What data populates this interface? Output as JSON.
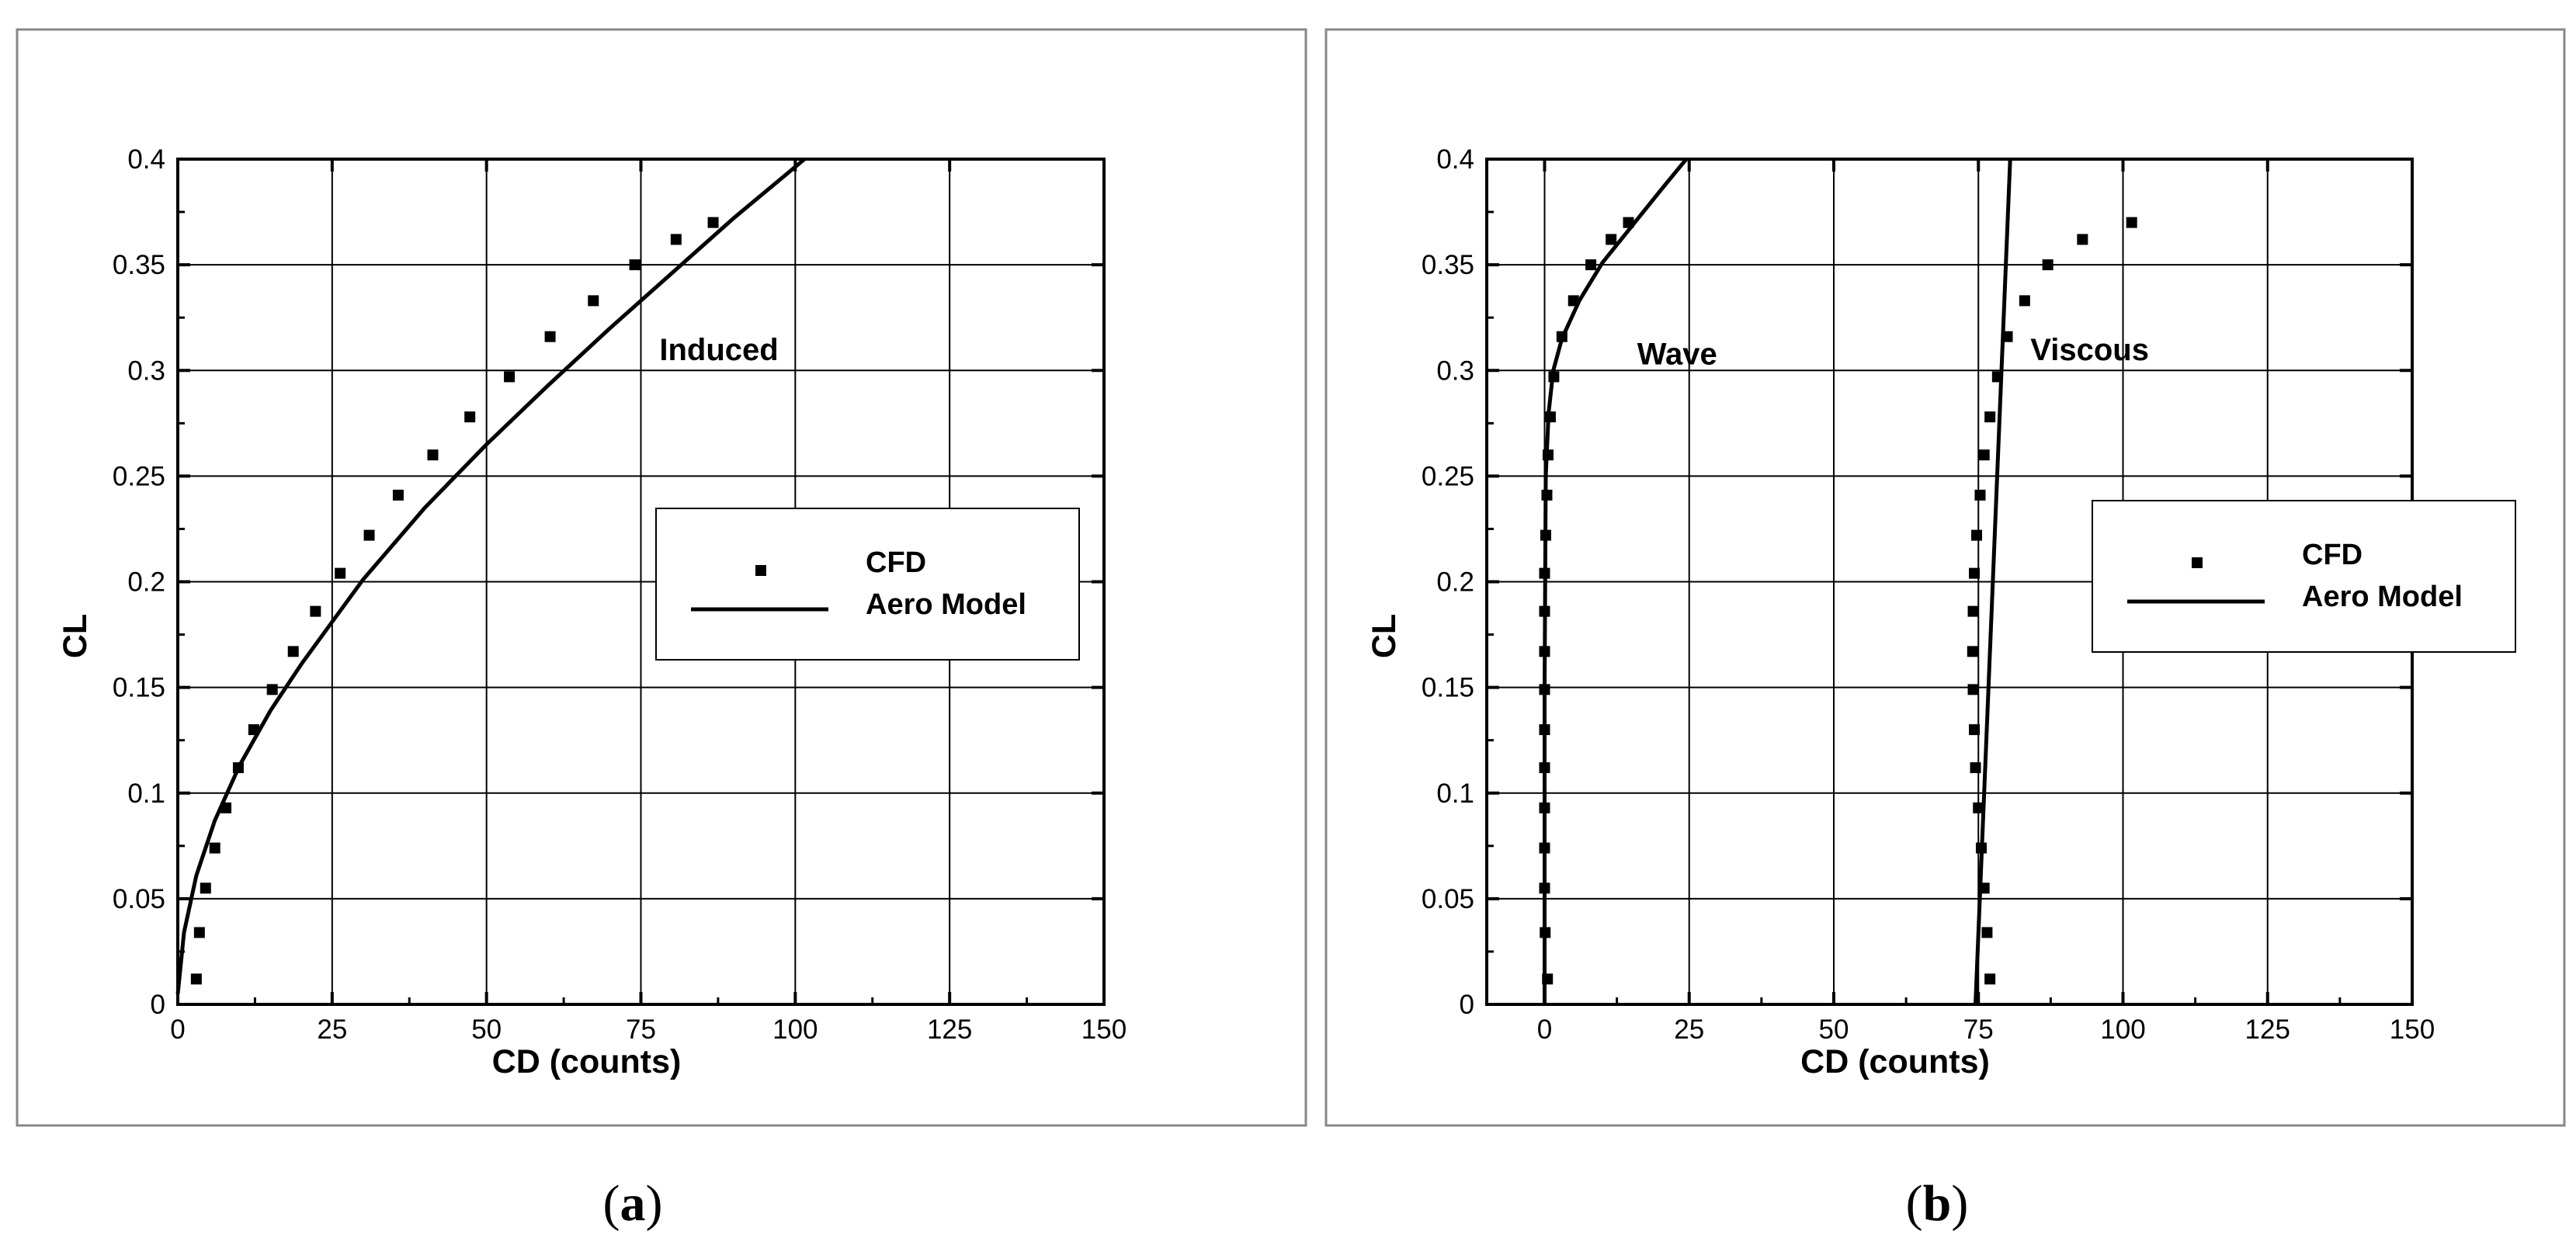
{
  "chart_data": [
    {
      "type": "scatter",
      "panel_label": "a",
      "xlabel": "CD (counts)",
      "ylabel": "CL",
      "xlim": [
        0,
        150
      ],
      "ylim": [
        0,
        0.4
      ],
      "xticks": [
        "0",
        "25",
        "50",
        "75",
        "100",
        "125",
        "150"
      ],
      "yticks": [
        "0",
        "0.05",
        "0.1",
        "0.15",
        "0.2",
        "0.25",
        "0.3",
        "0.35",
        "0.4"
      ],
      "grid": true,
      "legend": {
        "placement": "right",
        "entries": [
          "CFD",
          "Aero Model"
        ]
      },
      "annotations": [
        {
          "text": "Induced",
          "x": 78,
          "y": 0.31
        }
      ],
      "series": [
        {
          "name": "CFD",
          "kind": "markers",
          "points": [
            [
              3,
              0.012
            ],
            [
              3.5,
              0.034
            ],
            [
              4.5,
              0.055
            ],
            [
              6,
              0.074
            ],
            [
              7.8,
              0.093
            ],
            [
              9.8,
              0.112
            ],
            [
              12.3,
              0.13
            ],
            [
              15.3,
              0.149
            ],
            [
              18.7,
              0.167
            ],
            [
              22.3,
              0.186
            ],
            [
              26.3,
              0.204
            ],
            [
              31,
              0.222
            ],
            [
              35.7,
              0.241
            ],
            [
              41.3,
              0.26
            ],
            [
              47.3,
              0.278
            ],
            [
              53.7,
              0.297
            ],
            [
              60.3,
              0.316
            ],
            [
              67.3,
              0.333
            ],
            [
              74,
              0.35
            ],
            [
              80.7,
              0.362
            ],
            [
              86.7,
              0.37
            ]
          ]
        },
        {
          "name": "Aero Model",
          "kind": "line",
          "points": [
            [
              0,
              0.005
            ],
            [
              1,
              0.034
            ],
            [
              3,
              0.061
            ],
            [
              6,
              0.087
            ],
            [
              10,
              0.113
            ],
            [
              15,
              0.139
            ],
            [
              20,
              0.161
            ],
            [
              25,
              0.181
            ],
            [
              30,
              0.201
            ],
            [
              40,
              0.235
            ],
            [
              50,
              0.265
            ],
            [
              60,
              0.293
            ],
            [
              70,
              0.32
            ],
            [
              80,
              0.346
            ],
            [
              90,
              0.372
            ],
            [
              101.5,
              0.4
            ]
          ]
        }
      ]
    },
    {
      "type": "scatter",
      "panel_label": "b",
      "xlabel": "CD (counts)",
      "ylabel": "CL",
      "xlim": [
        -10,
        150
      ],
      "ylim": [
        0,
        0.4
      ],
      "xticks": [
        "0",
        "25",
        "50",
        "75",
        "100",
        "125",
        "150"
      ],
      "yticks": [
        "0",
        "0.05",
        "0.1",
        "0.15",
        "0.2",
        "0.25",
        "0.3",
        "0.35",
        "0.4"
      ],
      "grid": true,
      "legend": {
        "placement": "right",
        "entries": [
          "CFD",
          "Aero Model"
        ]
      },
      "annotations": [
        {
          "text": "Wave",
          "x": 16,
          "y": 0.308
        },
        {
          "text": "Viscous",
          "x": 84,
          "y": 0.31
        }
      ],
      "series": [
        {
          "name": "CFD",
          "group": "wave",
          "kind": "markers",
          "points": [
            [
              0.5,
              0.012
            ],
            [
              0.1,
              0.034
            ],
            [
              0,
              0.055
            ],
            [
              0,
              0.074
            ],
            [
              0,
              0.093
            ],
            [
              0,
              0.112
            ],
            [
              0,
              0.13
            ],
            [
              0,
              0.149
            ],
            [
              0,
              0.167
            ],
            [
              0,
              0.186
            ],
            [
              0,
              0.204
            ],
            [
              0.2,
              0.222
            ],
            [
              0.4,
              0.241
            ],
            [
              0.6,
              0.26
            ],
            [
              1,
              0.278
            ],
            [
              1.6,
              0.297
            ],
            [
              3,
              0.316
            ],
            [
              5,
              0.333
            ],
            [
              8,
              0.35
            ],
            [
              11.5,
              0.362
            ],
            [
              14.5,
              0.37
            ]
          ]
        },
        {
          "name": "CFD",
          "group": "viscous",
          "kind": "markers",
          "points": [
            [
              77,
              0.012
            ],
            [
              76.5,
              0.034
            ],
            [
              76,
              0.055
            ],
            [
              75.5,
              0.074
            ],
            [
              75,
              0.093
            ],
            [
              74.5,
              0.112
            ],
            [
              74.3,
              0.13
            ],
            [
              74.1,
              0.149
            ],
            [
              74,
              0.167
            ],
            [
              74.1,
              0.186
            ],
            [
              74.3,
              0.204
            ],
            [
              74.7,
              0.222
            ],
            [
              75.3,
              0.241
            ],
            [
              76,
              0.26
            ],
            [
              77,
              0.278
            ],
            [
              78.3,
              0.297
            ],
            [
              80,
              0.316
            ],
            [
              83,
              0.333
            ],
            [
              87,
              0.35
            ],
            [
              93,
              0.362
            ],
            [
              101.5,
              0.37
            ]
          ]
        },
        {
          "name": "Aero Model",
          "group": "wave",
          "kind": "line",
          "points": [
            [
              0,
              0
            ],
            [
              0,
              0.15
            ],
            [
              0.2,
              0.25
            ],
            [
              0.7,
              0.28
            ],
            [
              1.5,
              0.3
            ],
            [
              3,
              0.315
            ],
            [
              6,
              0.333
            ],
            [
              10,
              0.351
            ],
            [
              15,
              0.368
            ],
            [
              20,
              0.385
            ],
            [
              24.5,
              0.4
            ]
          ]
        },
        {
          "name": "Aero Model",
          "group": "viscous",
          "kind": "line",
          "points": [
            [
              74.5,
              0
            ],
            [
              80.5,
              0.4
            ]
          ]
        }
      ]
    }
  ]
}
